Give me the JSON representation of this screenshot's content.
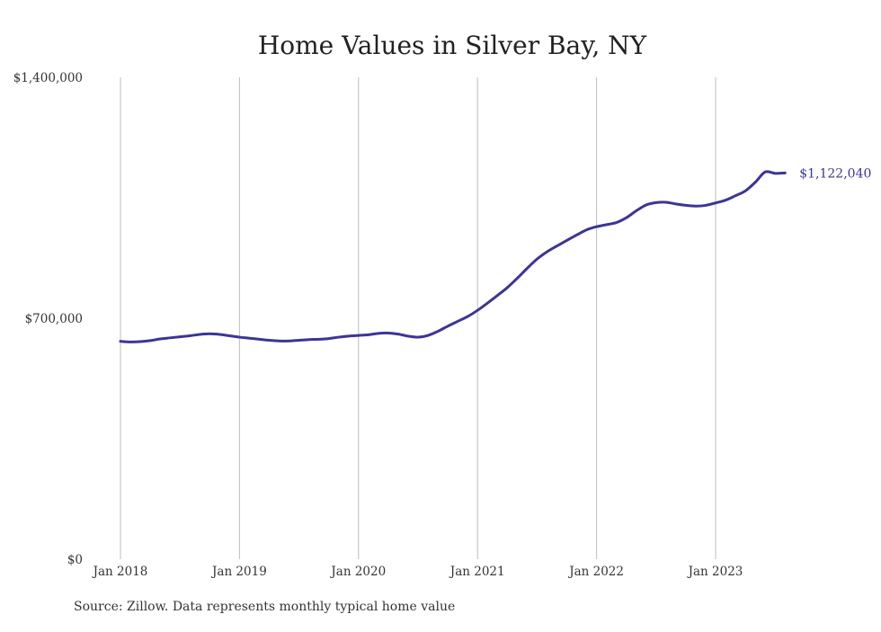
{
  "chart_data": {
    "type": "line",
    "title": "Home Values in Silver Bay, NY",
    "xlabel": "",
    "ylabel": "",
    "x_tick_labels": [
      "Jan 2018",
      "Jan 2019",
      "Jan 2020",
      "Jan 2021",
      "Jan 2022",
      "Jan 2023"
    ],
    "y_tick_labels": [
      "$0",
      "$700,000",
      "$1,400,000"
    ],
    "y_ticks": [
      0,
      700000,
      1400000
    ],
    "ylim": [
      0,
      1400000
    ],
    "grid": "vertical",
    "legend": "none",
    "line_color": "#3c3596",
    "end_label": "$1,122,040",
    "series": [
      {
        "dates": [
          "2018-01",
          "2018-02",
          "2018-03",
          "2018-04",
          "2018-05",
          "2018-06",
          "2018-07",
          "2018-08",
          "2018-09",
          "2018-10",
          "2018-11",
          "2018-12",
          "2019-01",
          "2019-02",
          "2019-03",
          "2019-04",
          "2019-05",
          "2019-06",
          "2019-07",
          "2019-08",
          "2019-09",
          "2019-10",
          "2019-11",
          "2019-12",
          "2020-01",
          "2020-02",
          "2020-03",
          "2020-04",
          "2020-05",
          "2020-06",
          "2020-07",
          "2020-08",
          "2020-09",
          "2020-10",
          "2020-11",
          "2020-12",
          "2021-01",
          "2021-02",
          "2021-03",
          "2021-04",
          "2021-05",
          "2021-06",
          "2021-07",
          "2021-08",
          "2021-09",
          "2021-10",
          "2021-11",
          "2021-12",
          "2022-01",
          "2022-02",
          "2022-03",
          "2022-04",
          "2022-05",
          "2022-06",
          "2022-07",
          "2022-08",
          "2022-09",
          "2022-10",
          "2022-11",
          "2022-12",
          "2023-01",
          "2023-02",
          "2023-03",
          "2023-04",
          "2023-05",
          "2023-06",
          "2023-07",
          "2023-08"
        ],
        "values": [
          633000,
          631000,
          632000,
          635000,
          640000,
          643000,
          646000,
          649000,
          653000,
          655000,
          653000,
          649000,
          645000,
          642000,
          639000,
          636000,
          634000,
          634000,
          636000,
          638000,
          639000,
          641000,
          645000,
          648000,
          650000,
          652000,
          656000,
          657000,
          654000,
          648000,
          645000,
          650000,
          662000,
          677000,
          691000,
          705000,
          723000,
          744000,
          766000,
          789000,
          816000,
          845000,
          872000,
          893000,
          910000,
          926000,
          942000,
          957000,
          966000,
          972000,
          978000,
          992000,
          1012000,
          1029000,
          1036000,
          1037000,
          1032000,
          1028000,
          1026000,
          1028000,
          1035000,
          1043000,
          1056000,
          1070000,
          1095000,
          1125000,
          1121000,
          1122040
        ]
      }
    ]
  },
  "footer": {
    "source": "Source: Zillow. Data represents monthly typical home value"
  }
}
